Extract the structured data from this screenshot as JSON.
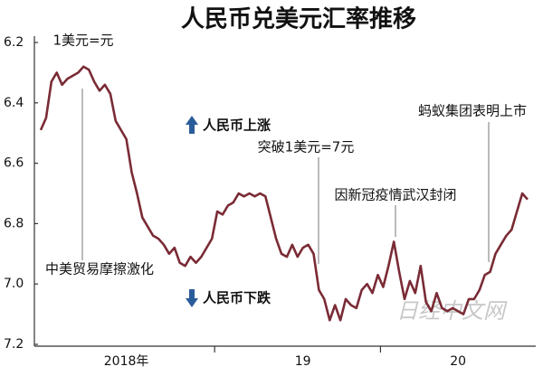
{
  "chart_data": {
    "type": "line",
    "title": "人民币兑美元汇率推移",
    "y_unit": "1美元=元",
    "annotations": [
      "中美贸易摩擦激化",
      "突破1美元=7元",
      "因新冠疫情武汉封闭",
      "蚂蚁集团表明上市"
    ],
    "up_label": "人民币上涨",
    "down_label": "人民币下跌",
    "watermark": "日经中文网",
    "categories": [
      null,
      null,
      null,
      null,
      null,
      null,
      null,
      null,
      null,
      null,
      null,
      null,
      null,
      null,
      null,
      null,
      "2018年",
      null,
      null,
      null,
      null,
      null,
      null,
      null,
      null,
      null,
      null,
      null,
      null,
      null,
      null,
      null,
      null,
      null,
      null,
      null,
      null,
      null,
      null,
      null,
      null,
      null,
      null,
      null,
      null,
      null,
      null,
      null,
      null,
      "19",
      null,
      null,
      null,
      null,
      null,
      null,
      null,
      null,
      null,
      null,
      null,
      null,
      null,
      null,
      null,
      null,
      null,
      null,
      null,
      null,
      null,
      null,
      null,
      null,
      null,
      null,
      null,
      null,
      "20",
      null,
      null,
      null,
      null,
      null,
      null,
      null,
      null,
      null,
      null,
      null,
      null,
      null
    ],
    "series": [
      {
        "name": "人民币兑美元汇率",
        "color": "#7a2b35",
        "values": [
          6.49,
          6.45,
          6.33,
          6.3,
          6.34,
          6.32,
          6.31,
          6.3,
          6.28,
          6.29,
          6.33,
          6.36,
          6.34,
          6.37,
          6.46,
          6.49,
          6.52,
          6.63,
          6.7,
          6.78,
          6.81,
          6.84,
          6.85,
          6.87,
          6.9,
          6.88,
          6.93,
          6.94,
          6.91,
          6.93,
          6.91,
          6.88,
          6.85,
          6.76,
          6.77,
          6.74,
          6.73,
          6.7,
          6.71,
          6.7,
          6.71,
          6.7,
          6.71,
          6.78,
          6.85,
          6.9,
          6.91,
          6.87,
          6.91,
          6.88,
          6.87,
          6.9,
          7.02,
          7.05,
          7.12,
          7.07,
          7.12,
          7.05,
          7.07,
          7.08,
          7.02,
          7.0,
          7.03,
          6.97,
          7.01,
          6.94,
          6.86,
          6.96,
          7.05,
          6.99,
          7.03,
          6.94,
          7.06,
          7.09,
          7.03,
          7.08,
          7.09,
          7.08,
          7.09,
          7.1,
          7.05,
          7.05,
          7.02,
          6.97,
          6.96,
          6.9,
          6.87,
          6.84,
          6.82,
          6.76,
          6.7,
          6.72
        ]
      }
    ],
    "ylim": [
      7.2,
      6.2
    ],
    "yticks": [
      6.2,
      6.4,
      6.6,
      6.8,
      {
        "value": 7,
        "label": "7.0"
      },
      7.2
    ]
  }
}
